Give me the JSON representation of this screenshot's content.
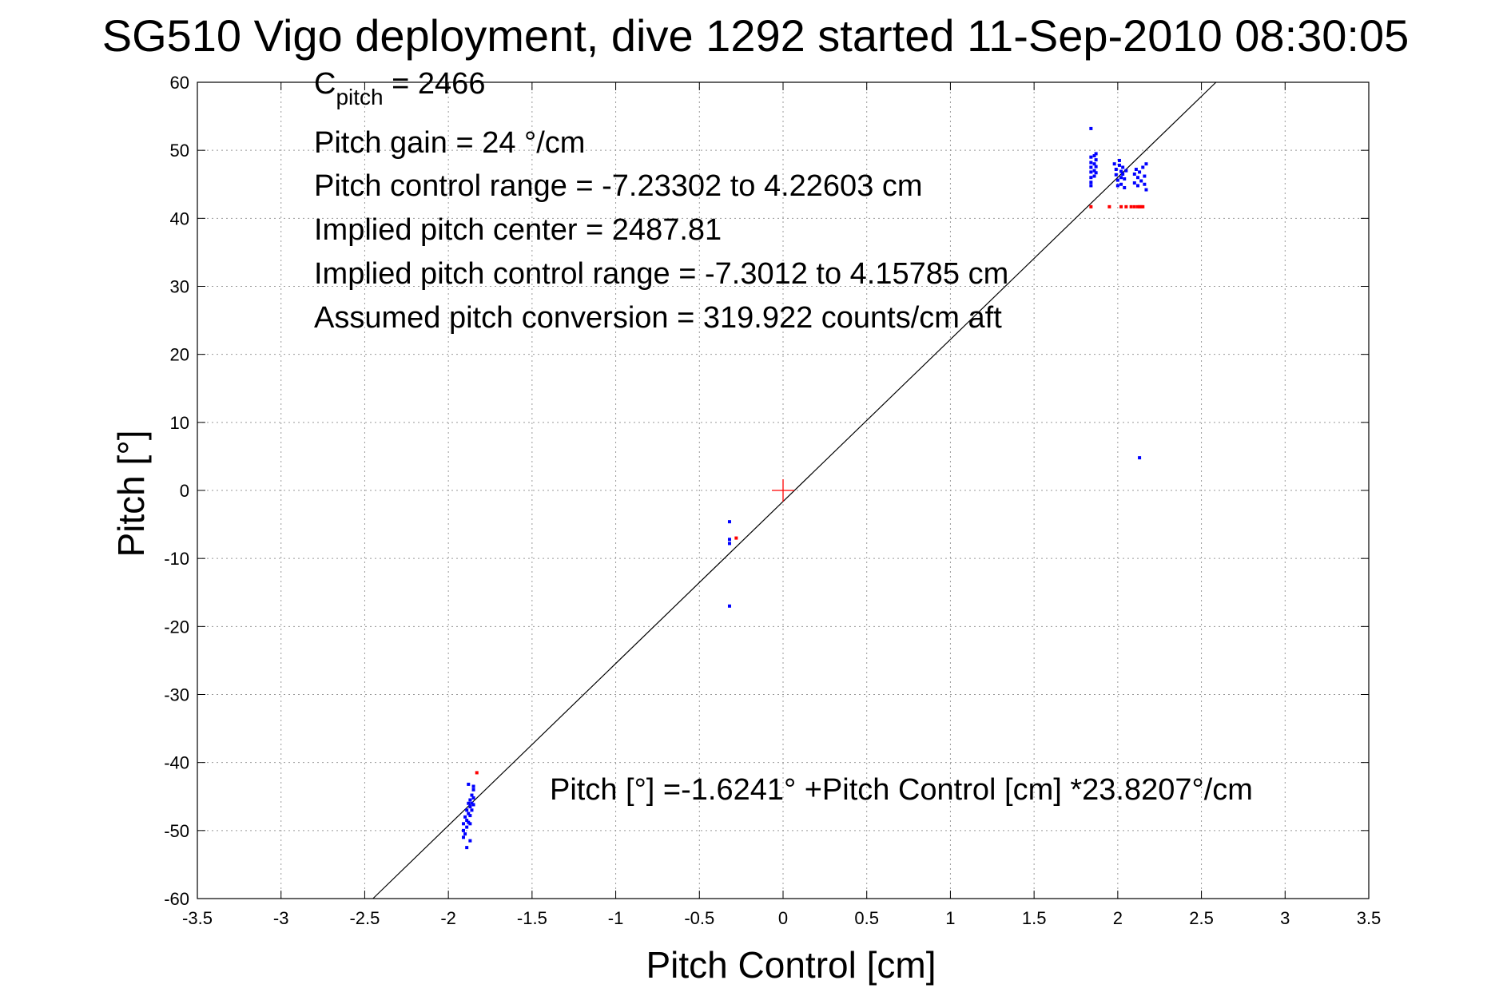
{
  "chart_data": {
    "type": "scatter",
    "title": "SG510 Vigo deployment, dive 1292 started 11-Sep-2010 08:30:05",
    "xlabel": "Pitch Control [cm]",
    "ylabel": "Pitch [°]",
    "xlim": [
      -3.5,
      3.5
    ],
    "ylim": [
      -60,
      60
    ],
    "grid": true,
    "xticks": [
      -3.5,
      -3,
      -2.5,
      -2,
      -1.5,
      -1,
      -0.5,
      0,
      0.5,
      1,
      1.5,
      2,
      2.5,
      3,
      3.5
    ],
    "xtick_labels": [
      "-3.5",
      "-3",
      "-2.5",
      "-2",
      "-1.5",
      "-1",
      "-0.5",
      "0",
      "0.5",
      "1",
      "1.5",
      "2",
      "2.5",
      "3",
      "3.5"
    ],
    "yticks": [
      60,
      50,
      40,
      30,
      20,
      10,
      0,
      -10,
      -20,
      -30,
      -40,
      -50,
      -60
    ],
    "ytick_labels": [
      "60",
      "50",
      "40",
      "30",
      "20",
      "10",
      "0",
      "-10",
      "-20",
      "-30",
      "-40",
      "-50",
      "-60"
    ],
    "fit_line": {
      "intercept": -1.6241,
      "slope": 23.8207,
      "color": "#000000"
    },
    "center_marker": {
      "x": 0,
      "y": 0,
      "color": "#ff0000"
    },
    "series": [
      {
        "name": "blue points",
        "color": "#0000ff",
        "points": [
          [
            1.84,
            53.2
          ],
          [
            1.84,
            49.0
          ],
          [
            1.84,
            48.2
          ],
          [
            1.84,
            47.5
          ],
          [
            1.84,
            46.8
          ],
          [
            1.84,
            46.0
          ],
          [
            1.84,
            45.3
          ],
          [
            1.84,
            44.8
          ],
          [
            1.86,
            49.2
          ],
          [
            1.86,
            48.0
          ],
          [
            1.86,
            47.0
          ],
          [
            1.86,
            46.2
          ],
          [
            1.87,
            49.5
          ],
          [
            1.87,
            48.6
          ],
          [
            1.87,
            47.6
          ],
          [
            1.87,
            46.7
          ],
          [
            1.98,
            48.0
          ],
          [
            1.99,
            47.2
          ],
          [
            1.99,
            46.4
          ],
          [
            2.0,
            45.6
          ],
          [
            2.0,
            44.8
          ],
          [
            2.01,
            48.5
          ],
          [
            2.01,
            47.8
          ],
          [
            2.02,
            46.9
          ],
          [
            2.02,
            46.0
          ],
          [
            2.02,
            45.0
          ],
          [
            2.03,
            47.5
          ],
          [
            2.03,
            46.5
          ],
          [
            2.04,
            45.8
          ],
          [
            2.04,
            44.5
          ],
          [
            2.05,
            47.0
          ],
          [
            2.1,
            46.5
          ],
          [
            2.1,
            45.2
          ],
          [
            2.11,
            47.2
          ],
          [
            2.12,
            46.0
          ],
          [
            2.12,
            44.8
          ],
          [
            2.13,
            46.8
          ],
          [
            2.14,
            45.5
          ],
          [
            2.15,
            47.5
          ],
          [
            2.16,
            46.2
          ],
          [
            2.16,
            45.0
          ],
          [
            2.17,
            48.0
          ],
          [
            2.17,
            44.2
          ],
          [
            2.13,
            4.8
          ],
          [
            -0.32,
            -4.6
          ],
          [
            -0.32,
            -7.2
          ],
          [
            -0.32,
            -7.8
          ],
          [
            -0.32,
            -17.0
          ],
          [
            -1.91,
            -49.0
          ],
          [
            -1.91,
            -50.0
          ],
          [
            -1.91,
            -51.0
          ],
          [
            -1.9,
            -48.0
          ],
          [
            -1.9,
            -50.5
          ],
          [
            -1.89,
            -47.0
          ],
          [
            -1.89,
            -48.5
          ],
          [
            -1.89,
            -49.5
          ],
          [
            -1.89,
            -52.5
          ],
          [
            -1.88,
            -46.0
          ],
          [
            -1.88,
            -47.5
          ],
          [
            -1.88,
            -48.8
          ],
          [
            -1.88,
            -43.2
          ],
          [
            -1.87,
            -45.5
          ],
          [
            -1.87,
            -46.5
          ],
          [
            -1.87,
            -47.8
          ],
          [
            -1.87,
            -49.0
          ],
          [
            -1.87,
            -51.5
          ],
          [
            -1.86,
            -44.8
          ],
          [
            -1.86,
            -46.0
          ],
          [
            -1.86,
            -47.0
          ],
          [
            -1.85,
            -44.0
          ],
          [
            -1.85,
            -45.2
          ],
          [
            -1.85,
            -46.2
          ],
          [
            -1.85,
            -43.5
          ]
        ]
      },
      {
        "name": "red points",
        "color": "#ff0000",
        "points": [
          [
            1.84,
            41.7
          ],
          [
            1.95,
            41.7
          ],
          [
            2.02,
            41.7
          ],
          [
            2.05,
            41.7
          ],
          [
            2.08,
            41.7
          ],
          [
            2.1,
            41.7
          ],
          [
            2.12,
            41.7
          ],
          [
            2.13,
            41.7
          ],
          [
            2.14,
            41.7
          ],
          [
            2.15,
            41.7
          ],
          [
            -0.28,
            -7.0
          ],
          [
            -1.83,
            -41.5
          ]
        ]
      }
    ]
  },
  "annotations": {
    "c_pitch_main": "C",
    "c_pitch_sub": "pitch",
    "c_pitch_value": " = 2466",
    "pitch_gain": "Pitch gain = 24 °/cm",
    "pitch_control_range": "Pitch control range = -7.23302 to 4.22603 cm",
    "implied_pitch_center": "Implied pitch center = 2487.81",
    "implied_pitch_control_range": "Implied pitch control range = -7.3012 to 4.15785 cm",
    "assumed_pitch_conversion": "Assumed pitch conversion = 319.922 counts/cm aft",
    "fit_equation": "Pitch [°] =-1.6241° +Pitch Control [cm] *23.8207°/cm"
  }
}
